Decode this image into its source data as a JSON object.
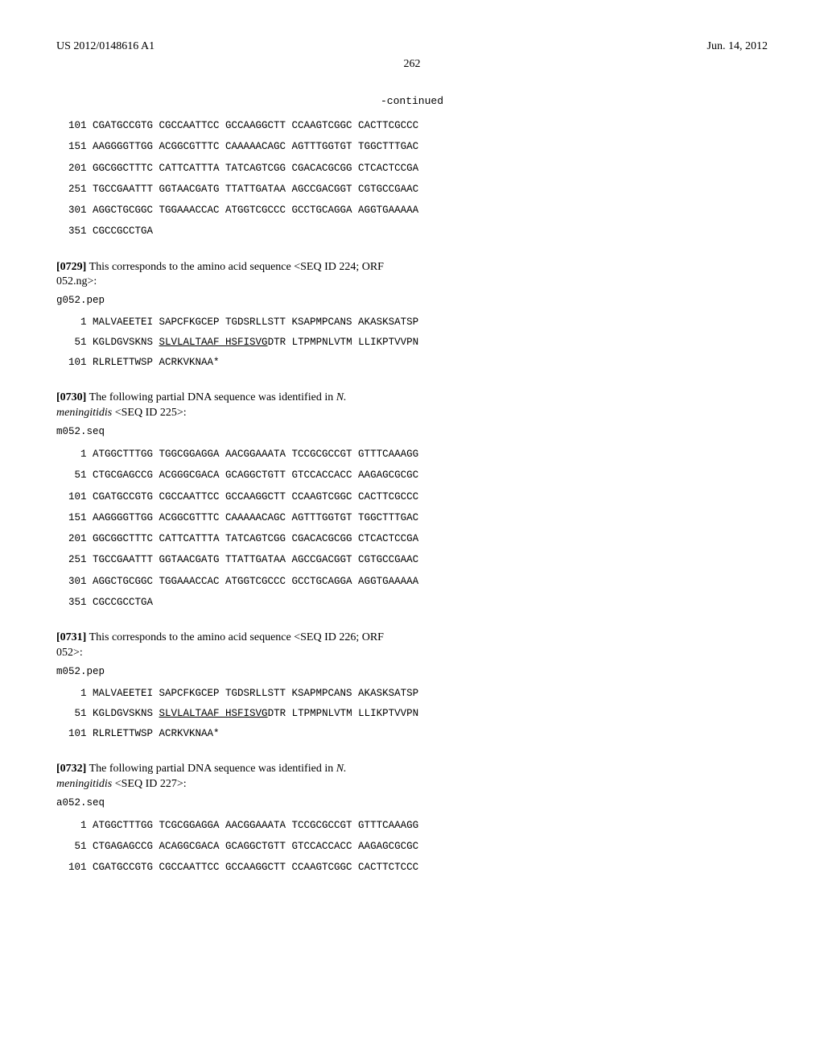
{
  "header": {
    "pub_number": "US 2012/0148616 A1",
    "pub_date": "Jun. 14, 2012"
  },
  "page_number": "262",
  "continued_label": "-continued",
  "seq_top": {
    "lines": [
      "  101 CGATGCCGTG CGCCAATTCC GCCAAGGCTT CCAAGTCGGC CACTTCGCCC",
      "  151 AAGGGGTTGG ACGGCGTTTC CAAAAACAGC AGTTTGGTGT TGGCTTTGAC",
      "  201 GGCGGCTTTC CATTCATTTA TATCAGTCGG CGACACGCGG CTCACTCCGA",
      "  251 TGCCGAATTT GGTAACGATG TTATTGATAA AGCCGACGGT CGTGCCGAAC",
      "  301 AGGCTGCGGC TGGAAACCAC ATGGTCGCCC GCCTGCAGGA AGGTGAAAAA",
      "  351 CGCCGCCTGA"
    ]
  },
  "para_0729": {
    "num": "[0729]",
    "text_pre": "   This corresponds to the amino acid sequence <SEQ ID 224; ORF 052.ng>:"
  },
  "g052_pep": {
    "header": "g052.pep",
    "line1_pre": "    1 MALVAEETEI SAPCFKGCEP TGDSRLLSTT KSAPMPCANS AKASKSATSP",
    "line2_pre": "   51 KGLDGVSKNS ",
    "line2_under": "SLVLALTAAF HSFISVG",
    "line2_post": "DTR LTPMPNLVTM LLIKPTVVPN",
    "line3": "  101 RLRLETTWSP ACRKVKNAA*"
  },
  "para_0730": {
    "num": "[0730]",
    "text_pre": "   The following partial DNA sequence was identified in ",
    "organism": "N. meningitidis",
    "text_post": " <SEQ ID 225>:"
  },
  "m052_seq": {
    "header": "m052.seq",
    "lines": [
      "    1 ATGGCTTTGG TGGCGGAGGA AACGGAAATA TCCGCGCCGT GTTTCAAAGG",
      "   51 CTGCGAGCCG ACGGGCGACA GCAGGCTGTT GTCCACCACC AAGAGCGCGC",
      "  101 CGATGCCGTG CGCCAATTCC GCCAAGGCTT CCAAGTCGGC CACTTCGCCC",
      "  151 AAGGGGTTGG ACGGCGTTTC CAAAAACAGC AGTTTGGTGT TGGCTTTGAC",
      "  201 GGCGGCTTTC CATTCATTTA TATCAGTCGG CGACACGCGG CTCACTCCGA",
      "  251 TGCCGAATTT GGTAACGATG TTATTGATAA AGCCGACGGT CGTGCCGAAC",
      "  301 AGGCTGCGGC TGGAAACCAC ATGGTCGCCC GCCTGCAGGA AGGTGAAAAA",
      "  351 CGCCGCCTGA"
    ]
  },
  "para_0731": {
    "num": "[0731]",
    "text_pre": "   This corresponds to the amino acid sequence <SEQ ID 226; ORF 052>:"
  },
  "m052_pep": {
    "header": "m052.pep",
    "line1_pre": "    1 MALVAEETEI SAPCFKGCEP TGDSRLLSTT KSAPMPCANS AKASKSATSP",
    "line2_pre": "   51 KGLDGVSKNS ",
    "line2_under": "SLVLALTAAF HSFISVG",
    "line2_post": "DTR LTPMPNLVTM LLIKPTVVPN",
    "line3": "  101 RLRLETTWSP ACRKVKNAA*"
  },
  "para_0732": {
    "num": "[0732]",
    "text_pre": "   The following partial DNA sequence was identified in ",
    "organism": "N. meningitidis",
    "text_post": " <SEQ ID 227>:"
  },
  "a052_seq": {
    "header": "a052.seq",
    "lines": [
      "    1 ATGGCTTTGG TCGCGGAGGA AACGGAAATA TCCGCGCCGT GTTTCAAAGG",
      "   51 CTGAGAGCCG ACAGGCGACA GCAGGCTGTT GTCCACCACC AAGAGCGCGC",
      "  101 CGATGCCGTG CGCCAATTCC GCCAAGGCTT CCAAGTCGGC CACTTCTCCC"
    ]
  }
}
